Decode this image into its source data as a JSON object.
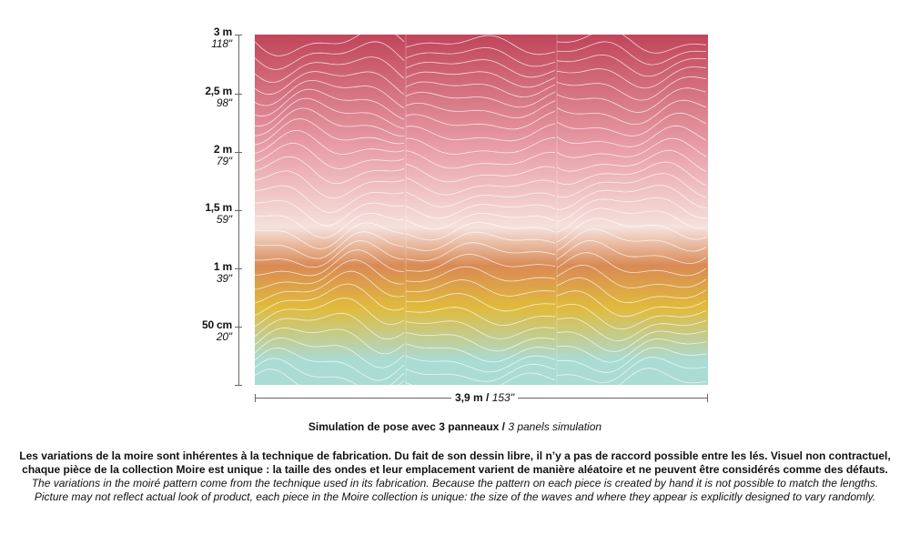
{
  "height_scale": [
    {
      "metric": "3 m",
      "imperial": "118''"
    },
    {
      "metric": "2,5 m",
      "imperial": "98''"
    },
    {
      "metric": "2 m",
      "imperial": "79''"
    },
    {
      "metric": "1,5 m",
      "imperial": "59''"
    },
    {
      "metric": "1 m",
      "imperial": "39''"
    },
    {
      "metric": "50 cm",
      "imperial": "20''"
    }
  ],
  "width_scale": {
    "metric": "3,9 m",
    "separator": " / ",
    "imperial": "153''"
  },
  "caption": {
    "fr": "Simulation de pose avec 3 panneaux / ",
    "en": "3 panels simulation"
  },
  "notes": {
    "fr_line1": "Les variations de la moire sont inhérentes à la technique de fabrication. Du fait de son dessin libre, il n’y a pas de raccord possible entre les lés. Visuel non contractuel,",
    "fr_line2": "chaque pièce de la collection Moire est unique : la taille des ondes et leur emplacement varient de manière aléatoire et ne peuvent être considérés comme des défauts.",
    "en_line1": "The variations in the moiré pattern come from the technique used in its fabrication. Because the pattern on each piece is created by hand it is not possible to match the lengths.",
    "en_line2": "Picture may not reflect actual look of product, each piece in the Moire collection is unique: the size of the waves and where they appear is explicitly designed to vary randomly."
  },
  "gradient_colors": [
    "#c0455a",
    "#e9a0a8",
    "#f5e1dc",
    "#d98a55",
    "#e0bb3c",
    "#aadbd4"
  ]
}
